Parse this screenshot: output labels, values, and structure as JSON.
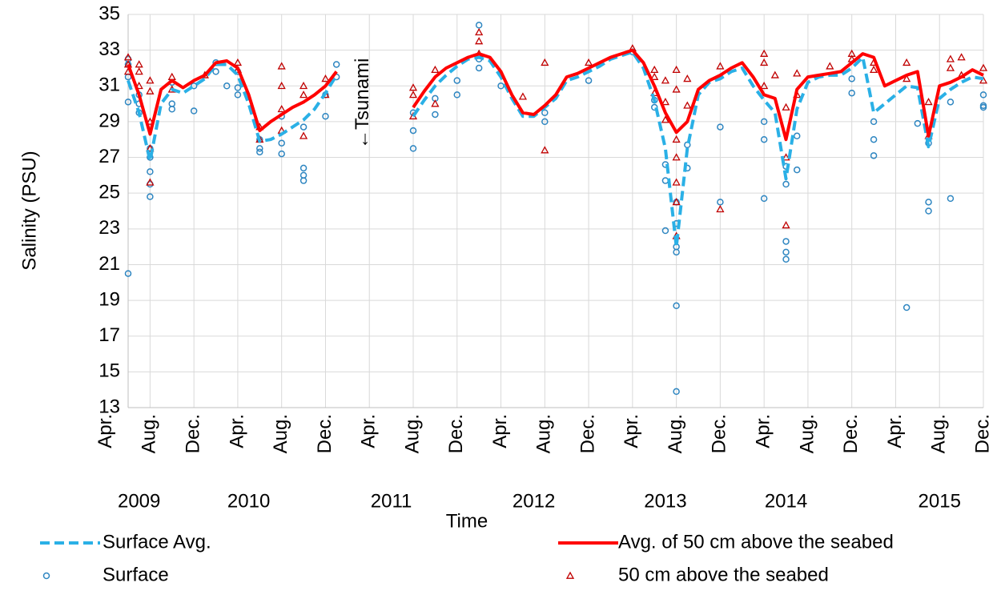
{
  "chart_data": {
    "type": "line",
    "x_label": "Time",
    "y_label": "Salinity (PSU)",
    "annotation": {
      "text": "←Tsunami",
      "x": "2011-03"
    },
    "xlim": [
      "2009-06",
      "2015-12"
    ],
    "ylim": [
      13,
      35
    ],
    "yticks": [
      13,
      15,
      17,
      19,
      21,
      23,
      25,
      27,
      29,
      31,
      33,
      35
    ],
    "xticks": [
      {
        "value": "2009-04",
        "label": "Apr."
      },
      {
        "value": "2009-08",
        "label": "Aug."
      },
      {
        "value": "2009-12",
        "label": "Dec."
      },
      {
        "value": "2010-04",
        "label": "Apr."
      },
      {
        "value": "2010-08",
        "label": "Aug."
      },
      {
        "value": "2010-12",
        "label": "Dec."
      },
      {
        "value": "2011-04",
        "label": "Apr."
      },
      {
        "value": "2011-08",
        "label": "Aug."
      },
      {
        "value": "2011-12",
        "label": "Dec."
      },
      {
        "value": "2012-04",
        "label": "Apr."
      },
      {
        "value": "2012-08",
        "label": "Aug."
      },
      {
        "value": "2012-12",
        "label": "Dec."
      },
      {
        "value": "2013-04",
        "label": "Apr."
      },
      {
        "value": "2013-08",
        "label": "Aug."
      },
      {
        "value": "2013-12",
        "label": "Dec."
      },
      {
        "value": "2014-04",
        "label": "Apr."
      },
      {
        "value": "2014-08",
        "label": "Aug."
      },
      {
        "value": "2014-12",
        "label": "Dec."
      },
      {
        "value": "2015-04",
        "label": "Apr."
      },
      {
        "value": "2015-08",
        "label": "Aug."
      },
      {
        "value": "2015-12",
        "label": "Dec."
      }
    ],
    "year_labels": [
      {
        "value": "2009-07",
        "label": "2009"
      },
      {
        "value": "2010-05",
        "label": "2010"
      },
      {
        "value": "2011-06",
        "label": "2011"
      },
      {
        "value": "2012-07",
        "label": "2012"
      },
      {
        "value": "2013-07",
        "label": "2013"
      },
      {
        "value": "2014-06",
        "label": "2014"
      },
      {
        "value": "2015-08",
        "label": "2015"
      }
    ],
    "grid": true,
    "legend": "bottom",
    "x": [
      "2009-06",
      "2009-07",
      "2009-08",
      "2009-09",
      "2009-10",
      "2009-11",
      "2009-12",
      "2010-01",
      "2010-02",
      "2010-03",
      "2010-04",
      "2010-05",
      "2010-06",
      "2010-07",
      "2010-08",
      "2010-09",
      "2010-10",
      "2010-11",
      "2010-12",
      "2011-01",
      "2011-02",
      "2011-03",
      "2011-04",
      "2011-05",
      "2011-06",
      "2011-07",
      "2011-08",
      "2011-09",
      "2011-10",
      "2011-11",
      "2011-12",
      "2012-01",
      "2012-02",
      "2012-03",
      "2012-04",
      "2012-05",
      "2012-06",
      "2012-07",
      "2012-08",
      "2012-09",
      "2012-10",
      "2012-11",
      "2012-12",
      "2013-01",
      "2013-02",
      "2013-03",
      "2013-04",
      "2013-05",
      "2013-06",
      "2013-07",
      "2013-08",
      "2013-09",
      "2013-10",
      "2013-11",
      "2013-12",
      "2014-01",
      "2014-02",
      "2014-03",
      "2014-04",
      "2014-05",
      "2014-06",
      "2014-07",
      "2014-08",
      "2014-09",
      "2014-10",
      "2014-11",
      "2014-12",
      "2015-01",
      "2015-02",
      "2015-03",
      "2015-04",
      "2015-05",
      "2015-06",
      "2015-07",
      "2015-08",
      "2015-09",
      "2015-10",
      "2015-11",
      "2015-12"
    ],
    "series": [
      {
        "name": "Surface Avg.",
        "color": "#2ab0e6",
        "dash": true,
        "values": [
          31.3,
          29.5,
          26.8,
          30.0,
          30.8,
          30.6,
          31.0,
          31.4,
          32.2,
          32.2,
          31.6,
          30.0,
          27.9,
          28.0,
          28.3,
          28.7,
          29.1,
          29.7,
          30.6,
          31.6,
          null,
          null,
          null,
          null,
          null,
          null,
          29.3,
          30.2,
          31.0,
          31.6,
          32.1,
          32.5,
          32.6,
          32.4,
          31.5,
          30.3,
          29.3,
          29.3,
          29.8,
          30.3,
          31.3,
          31.5,
          31.8,
          32.1,
          32.5,
          32.7,
          32.9,
          32.0,
          30.2,
          27.5,
          22.0,
          27.5,
          30.5,
          31.2,
          31.4,
          31.8,
          32.0,
          31.0,
          30.2,
          29.5,
          25.8,
          29.7,
          31.2,
          31.5,
          31.6,
          31.6,
          32.0,
          32.6,
          29.5,
          30.0,
          30.5,
          31.0,
          30.9,
          27.6,
          30.3,
          30.8,
          31.2,
          31.5,
          31.4
        ]
      },
      {
        "name": "Avg. of 50 cm above the seabed",
        "color": "#ff0000",
        "dash": false,
        "values": [
          32.2,
          30.5,
          28.3,
          30.8,
          31.3,
          30.9,
          31.3,
          31.6,
          32.3,
          32.4,
          32.0,
          30.5,
          28.5,
          29.0,
          29.4,
          29.8,
          30.1,
          30.5,
          31.0,
          31.8,
          null,
          null,
          null,
          null,
          null,
          null,
          29.8,
          30.7,
          31.5,
          32.0,
          32.3,
          32.6,
          32.8,
          32.6,
          31.8,
          30.5,
          29.5,
          29.4,
          29.9,
          30.5,
          31.5,
          31.7,
          32.0,
          32.3,
          32.6,
          32.8,
          33.0,
          32.3,
          31.0,
          29.5,
          28.4,
          29.0,
          30.8,
          31.3,
          31.6,
          32.0,
          32.3,
          31.5,
          30.5,
          30.3,
          28.0,
          30.8,
          31.5,
          31.6,
          31.7,
          31.8,
          32.3,
          32.8,
          32.6,
          31.0,
          31.3,
          31.6,
          31.8,
          28.2,
          31.0,
          31.2,
          31.5,
          31.9,
          31.6
        ]
      }
    ],
    "points": [
      {
        "name": "Surface",
        "color": "#2e86c1",
        "marker": "circle",
        "x": [
          "2009-06",
          "2009-06",
          "2009-06",
          "2009-06",
          "2009-06",
          "2009-07",
          "2009-07",
          "2009-07",
          "2009-08",
          "2009-08",
          "2009-08",
          "2009-08",
          "2009-08",
          "2009-10",
          "2009-10",
          "2009-10",
          "2009-12",
          "2009-12",
          "2010-02",
          "2010-02",
          "2010-03",
          "2010-04",
          "2010-04",
          "2010-04",
          "2010-06",
          "2010-06",
          "2010-06",
          "2010-08",
          "2010-08",
          "2010-08",
          "2010-10",
          "2010-10",
          "2010-10",
          "2010-10",
          "2010-12",
          "2010-12",
          "2011-01",
          "2011-01",
          "2011-08",
          "2011-08",
          "2011-08",
          "2011-10",
          "2011-10",
          "2011-12",
          "2011-12",
          "2012-02",
          "2012-02",
          "2012-02",
          "2012-04",
          "2012-08",
          "2012-08",
          "2012-12",
          "2013-04",
          "2013-06",
          "2013-06",
          "2013-07",
          "2013-07",
          "2013-07",
          "2013-08",
          "2013-08",
          "2013-08",
          "2013-08",
          "2013-08",
          "2013-08",
          "2013-09",
          "2013-09",
          "2013-12",
          "2013-12",
          "2014-04",
          "2014-04",
          "2014-04",
          "2014-06",
          "2014-06",
          "2014-06",
          "2014-06",
          "2014-06",
          "2014-07",
          "2014-07",
          "2014-12",
          "2014-12",
          "2015-02",
          "2015-02",
          "2015-02",
          "2015-05",
          "2015-06",
          "2015-07",
          "2015-07",
          "2015-07",
          "2015-09",
          "2015-09",
          "2015-12",
          "2015-12",
          "2015-12"
        ],
        "values": [
          32.5,
          32.2,
          31.5,
          30.1,
          20.5,
          30.0,
          29.5,
          30.5,
          27.0,
          26.2,
          25.5,
          24.8,
          27.5,
          31.2,
          30.0,
          29.7,
          31.0,
          29.6,
          32.3,
          31.8,
          31.0,
          31.8,
          30.9,
          30.5,
          28.0,
          27.5,
          27.3,
          29.3,
          27.8,
          27.2,
          28.7,
          26.4,
          26.0,
          25.7,
          30.5,
          29.3,
          32.2,
          31.5,
          29.5,
          28.5,
          27.5,
          30.3,
          29.4,
          31.3,
          30.5,
          34.4,
          32.5,
          32.0,
          31.0,
          29.5,
          29.0,
          31.3,
          32.9,
          30.2,
          29.8,
          26.6,
          25.7,
          22.9,
          24.5,
          23.3,
          22.0,
          21.7,
          18.7,
          13.9,
          27.7,
          26.4,
          28.7,
          24.5,
          29.0,
          28.0,
          24.7,
          26.5,
          25.5,
          22.3,
          21.7,
          21.3,
          28.2,
          26.3,
          31.4,
          30.6,
          29.0,
          28.0,
          27.1,
          18.6,
          28.9,
          27.8,
          24.5,
          24.0,
          24.7,
          30.1,
          29.8,
          29.9,
          30.5
        ]
      },
      {
        "name": "50 cm above the seabed",
        "color": "#c00000",
        "marker": "triangle",
        "x": [
          "2009-06",
          "2009-06",
          "2009-06",
          "2009-07",
          "2009-07",
          "2009-07",
          "2009-08",
          "2009-08",
          "2009-08",
          "2009-08",
          "2009-08",
          "2009-10",
          "2009-10",
          "2010-01",
          "2010-04",
          "2010-04",
          "2010-06",
          "2010-06",
          "2010-08",
          "2010-08",
          "2010-08",
          "2010-08",
          "2010-10",
          "2010-10",
          "2010-10",
          "2010-12",
          "2010-12",
          "2011-08",
          "2011-08",
          "2011-08",
          "2011-10",
          "2011-10",
          "2012-02",
          "2012-02",
          "2012-02",
          "2012-06",
          "2012-08",
          "2012-08",
          "2012-12",
          "2013-04",
          "2013-06",
          "2013-06",
          "2013-06",
          "2013-07",
          "2013-07",
          "2013-07",
          "2013-08",
          "2013-08",
          "2013-08",
          "2013-08",
          "2013-08",
          "2013-08",
          "2013-08",
          "2013-09",
          "2013-09",
          "2013-12",
          "2013-12",
          "2014-04",
          "2014-04",
          "2014-04",
          "2014-05",
          "2014-06",
          "2014-06",
          "2014-06",
          "2014-07",
          "2014-07",
          "2014-10",
          "2014-12",
          "2014-12",
          "2015-02",
          "2015-02",
          "2015-05",
          "2015-05",
          "2015-07",
          "2015-07",
          "2015-09",
          "2015-09",
          "2015-10",
          "2015-10",
          "2015-12",
          "2015-12"
        ],
        "values": [
          32.6,
          32.2,
          31.8,
          32.2,
          31.8,
          31.0,
          31.3,
          30.7,
          29.0,
          27.5,
          25.6,
          31.5,
          30.8,
          31.6,
          32.3,
          31.9,
          28.7,
          28.0,
          32.1,
          31.0,
          29.7,
          28.5,
          31.0,
          30.5,
          28.2,
          31.4,
          30.5,
          30.9,
          30.5,
          29.3,
          31.9,
          30.0,
          34.0,
          33.5,
          32.8,
          30.4,
          32.3,
          27.4,
          32.3,
          33.1,
          31.9,
          31.5,
          30.6,
          31.3,
          30.1,
          29.1,
          31.9,
          30.8,
          28.0,
          27.0,
          25.6,
          24.5,
          22.6,
          31.4,
          29.9,
          32.1,
          24.1,
          32.8,
          32.3,
          31.0,
          31.6,
          29.8,
          27.0,
          23.2,
          31.7,
          30.5,
          32.1,
          32.8,
          32.5,
          32.3,
          31.9,
          32.3,
          31.4,
          30.1,
          28.2,
          32.5,
          32.0,
          32.6,
          31.6,
          32.0,
          31.3
        ]
      }
    ]
  }
}
